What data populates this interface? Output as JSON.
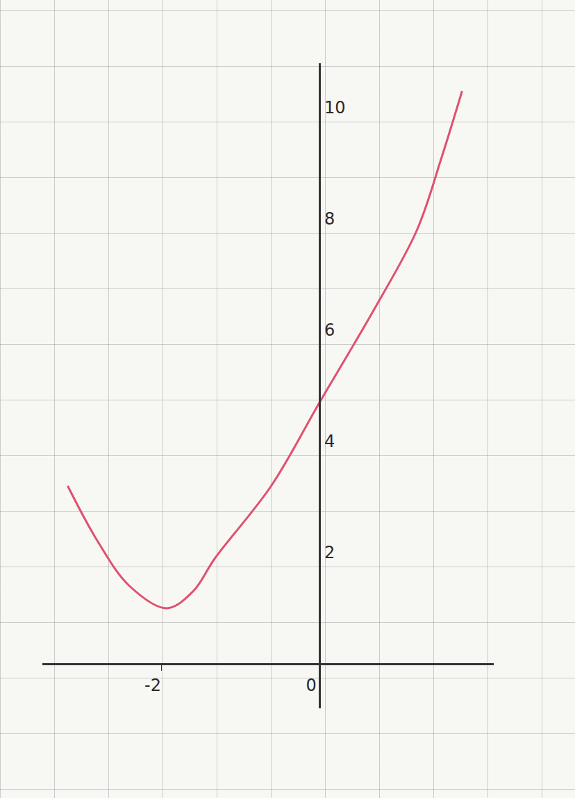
{
  "chart_data": {
    "type": "line",
    "x": [
      -3.18,
      -2.8,
      -2.4,
      -1.93,
      -1.6,
      -1.32,
      -0.61,
      0.0,
      0.7,
      1.23,
      1.54,
      1.8
    ],
    "values": [
      3.2,
      2.2,
      1.4,
      1.0,
      1.3,
      1.9,
      3.2,
      4.7,
      6.4,
      7.8,
      9.1,
      10.3
    ],
    "color": "#e0506e",
    "xlim": [
      -3.5,
      2.2
    ],
    "xticks": [
      -2,
      0
    ],
    "ylim": [
      -0.8,
      10.8
    ],
    "yticks": [
      2,
      4,
      6,
      8,
      10
    ]
  }
}
